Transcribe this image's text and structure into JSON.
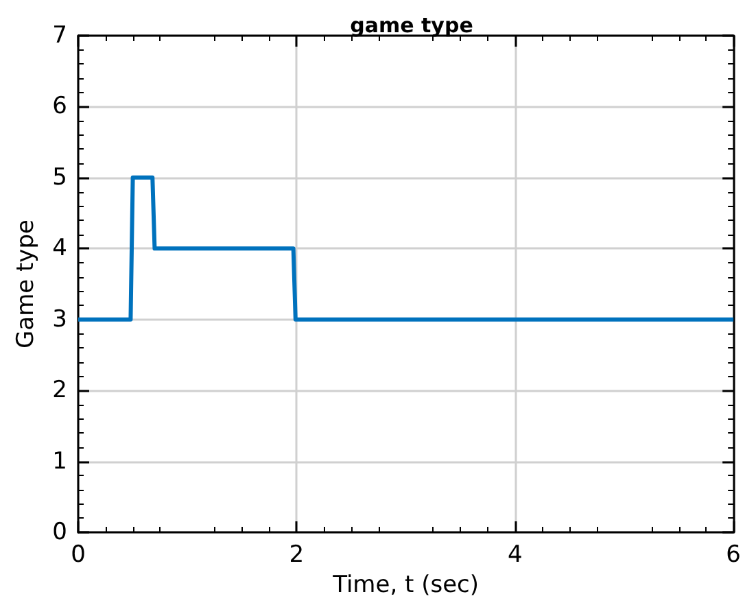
{
  "chart_data": {
    "type": "line",
    "title": "game type",
    "xlabel": "Time, t (sec)",
    "ylabel": "Game type",
    "x": [
      0,
      0.48,
      0.5,
      0.68,
      0.7,
      1.97,
      1.99,
      6
    ],
    "series": [
      {
        "color": "#0072bd",
        "values": [
          3,
          3,
          5,
          5,
          4,
          4,
          3,
          3
        ]
      }
    ],
    "xlim": [
      0,
      6
    ],
    "xticks": [
      0,
      2,
      4,
      6
    ],
    "ylim": [
      0,
      7
    ],
    "yticks": [
      0,
      1,
      2,
      3,
      4,
      5,
      6,
      7
    ],
    "grid": true,
    "marker": "none",
    "line_style": "solid"
  }
}
